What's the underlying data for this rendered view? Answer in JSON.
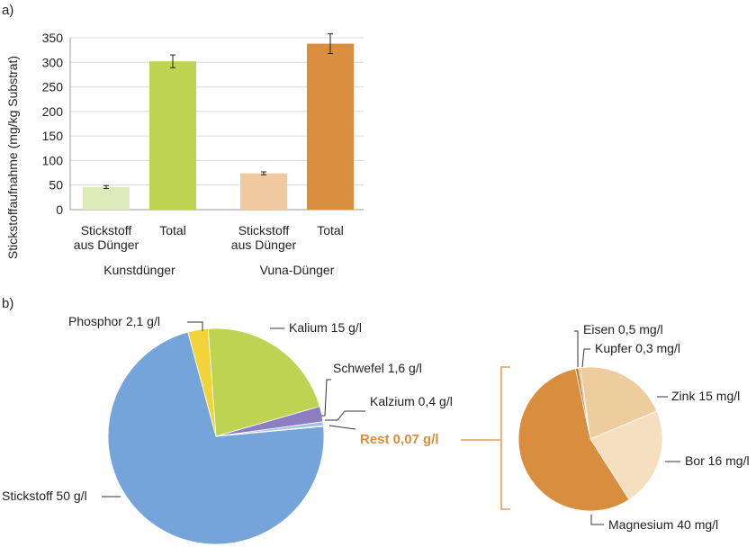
{
  "panel_a_label": "a)",
  "panel_b_label": "b)",
  "chart_data": [
    {
      "type": "bar",
      "ylabel": "Stickstoffaufnahme (mg/kg Substrat)",
      "ylim": [
        0,
        350
      ],
      "yticks": [
        0,
        50,
        100,
        150,
        200,
        250,
        300,
        350
      ],
      "groups": [
        {
          "name": "Kunstdünger",
          "bars": [
            {
              "label_lines": [
                "Stickstoff",
                "aus Dünger"
              ],
              "value": 46,
              "error": 3,
              "color": "#dcebb9"
            },
            {
              "label_lines": [
                "Total"
              ],
              "value": 302,
              "error": 13,
              "color": "#bed352"
            }
          ]
        },
        {
          "name": "Vuna-Dünger",
          "bars": [
            {
              "label_lines": [
                "Stickstoff",
                "aus Dünger"
              ],
              "value": 74,
              "error": 3,
              "color": "#f0c9a0"
            },
            {
              "label_lines": [
                "Total"
              ],
              "value": 338,
              "error": 20,
              "color": "#d98d3e"
            }
          ]
        }
      ]
    },
    {
      "type": "pie",
      "slices": [
        {
          "label": "Stickstoff 50 g/l",
          "value": 50,
          "color": "#74a4d9"
        },
        {
          "label": "Phosphor 2,1 g/l",
          "value": 2.1,
          "color": "#f2d43a"
        },
        {
          "label": "Kalium 15 g/l",
          "value": 15,
          "color": "#bed352"
        },
        {
          "label": "Schwefel 1,6 g/l",
          "value": 1.6,
          "color": "#8c7ec0"
        },
        {
          "label": "Kalzium 0,4 g/l",
          "value": 0.4,
          "color": "#9fc0e8"
        },
        {
          "label": "Rest 0,07 g/l",
          "value": 0.07,
          "color": "#d98d3e"
        }
      ]
    },
    {
      "type": "pie",
      "title": "Rest 0,07 g/l",
      "slices": [
        {
          "label": "Eisen 0,5 mg/l",
          "value": 0.5,
          "color": "#ca7430"
        },
        {
          "label": "Kupfer 0,3 mg/l",
          "value": 0.3,
          "color": "#e8a866"
        },
        {
          "label": "Zink 15 mg/l",
          "value": 15,
          "color": "#edcc9e"
        },
        {
          "label": "Bor 16 mg/l",
          "value": 16,
          "color": "#f5dfbe"
        },
        {
          "label": "Magnesium 40 mg/l",
          "value": 40,
          "color": "#d98d3e"
        }
      ]
    }
  ]
}
